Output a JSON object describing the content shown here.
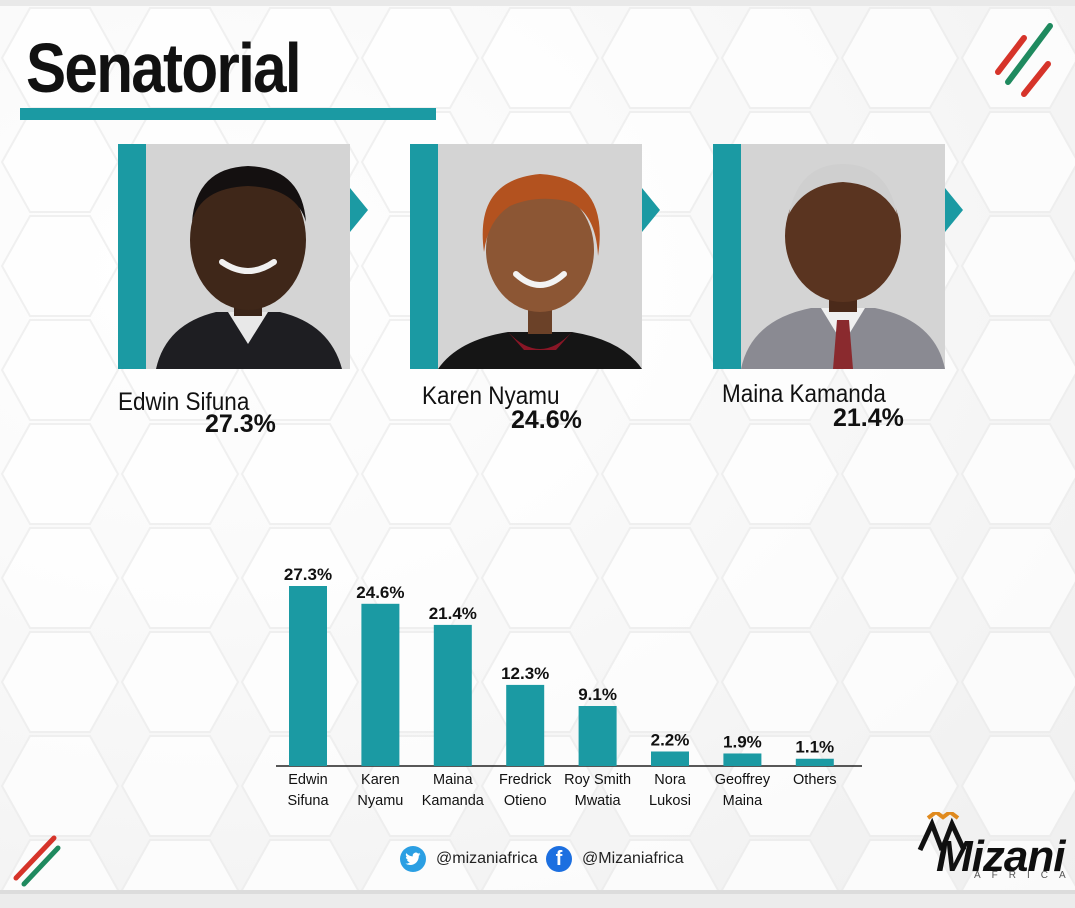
{
  "title": "Senatorial",
  "colors": {
    "accent": "#1b9aa3",
    "brand_red": "#d6342a",
    "brand_green": "#1f8a5f"
  },
  "candidates": [
    {
      "name": "Edwin Sifuna",
      "percent": "27.3%"
    },
    {
      "name": "Karen Nyamu",
      "percent": "24.6%"
    },
    {
      "name": "Maina Kamanda",
      "percent": "21.4%"
    }
  ],
  "chart_data": {
    "type": "bar",
    "categories": [
      [
        "Edwin",
        "Sifuna"
      ],
      [
        "Karen",
        "Nyamu"
      ],
      [
        "Maina",
        "Kamanda"
      ],
      [
        "Fredrick",
        "Otieno"
      ],
      [
        "Roy Smith",
        "Mwatia"
      ],
      [
        "Nora",
        "Lukosi"
      ],
      [
        "Geoffrey",
        "Maina"
      ],
      [
        "Others"
      ]
    ],
    "values": [
      27.3,
      24.6,
      21.4,
      12.3,
      9.1,
      2.2,
      1.9,
      1.1
    ],
    "value_labels": [
      "27.3%",
      "24.6%",
      "21.4%",
      "12.3%",
      "9.1%",
      "2.2%",
      "1.9%",
      "1.1%"
    ],
    "bar_color": "#1b9aa3",
    "grid": false
  },
  "footer": {
    "twitter_handle": "@mizaniafrica",
    "facebook_handle": "@Mizaniafrica",
    "twitter_icon": "twitter-bird-icon",
    "facebook_icon": "facebook-f-icon"
  },
  "logo": {
    "text": "Mizani",
    "sub": "AFRICA"
  }
}
